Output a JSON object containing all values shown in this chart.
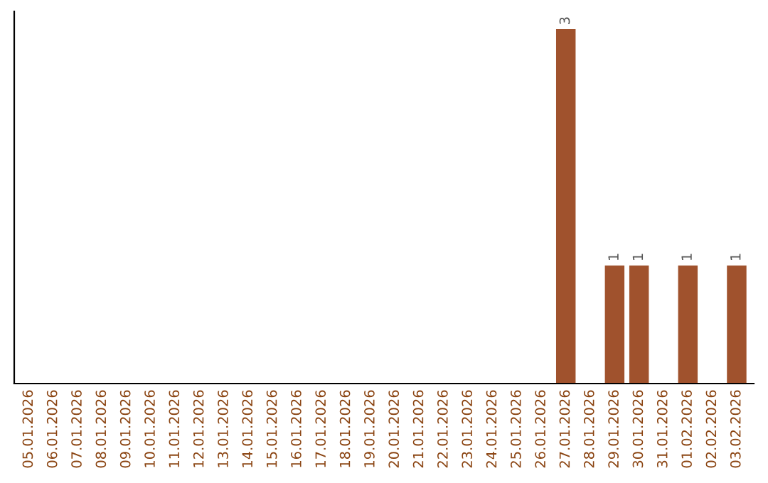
{
  "chart_data": {
    "type": "bar",
    "categories": [
      "05.01.2026",
      "06.01.2026",
      "07.01.2026",
      "08.01.2026",
      "09.01.2026",
      "10.01.2026",
      "11.01.2026",
      "12.01.2026",
      "13.01.2026",
      "14.01.2026",
      "15.01.2026",
      "16.01.2026",
      "17.01.2026",
      "18.01.2026",
      "19.01.2026",
      "20.01.2026",
      "21.01.2026",
      "22.01.2026",
      "23.01.2026",
      "24.01.2026",
      "25.01.2026",
      "26.01.2026",
      "27.01.2026",
      "28.01.2026",
      "29.01.2026",
      "30.01.2026",
      "31.01.2026",
      "01.02.2026",
      "02.02.2026",
      "03.02.2026"
    ],
    "values": [
      null,
      null,
      null,
      null,
      null,
      null,
      null,
      null,
      null,
      null,
      null,
      null,
      null,
      null,
      null,
      null,
      null,
      null,
      null,
      null,
      null,
      null,
      3,
      null,
      1,
      1,
      null,
      1,
      null,
      1
    ],
    "value_labels": [
      null,
      null,
      null,
      null,
      null,
      null,
      null,
      null,
      null,
      null,
      null,
      null,
      null,
      null,
      null,
      null,
      null,
      null,
      null,
      null,
      null,
      null,
      "3",
      null,
      "1",
      "1",
      null,
      "1",
      null,
      "1"
    ],
    "color": "#a0522d",
    "tick_labels": "x",
    "grid": false,
    "legend": false
  }
}
